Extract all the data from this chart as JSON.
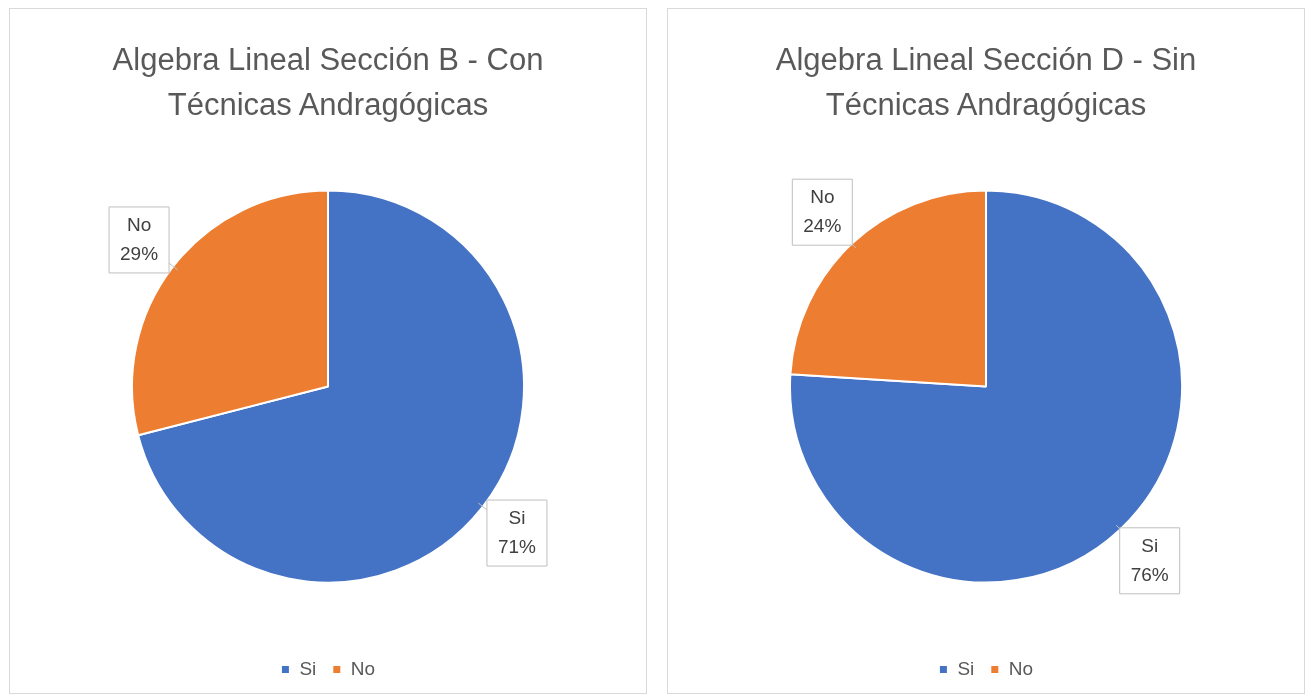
{
  "chart_data": [
    {
      "type": "pie",
      "title": "Algebra Lineal Sección B - Con Técnicas Andragógicas",
      "categories": [
        "Si",
        "No"
      ],
      "values": [
        71,
        29
      ],
      "value_labels": [
        "71%",
        "29%"
      ],
      "colors": [
        "#4472c4",
        "#ed7d31"
      ],
      "legend": "bottom"
    },
    {
      "type": "pie",
      "title": "Algebra Lineal Sección D - Sin Técnicas Andragógicas",
      "categories": [
        "Si",
        "No"
      ],
      "values": [
        76,
        24
      ],
      "value_labels": [
        "76%",
        "24%"
      ],
      "colors": [
        "#4472c4",
        "#ed7d31"
      ],
      "legend": "bottom"
    }
  ]
}
